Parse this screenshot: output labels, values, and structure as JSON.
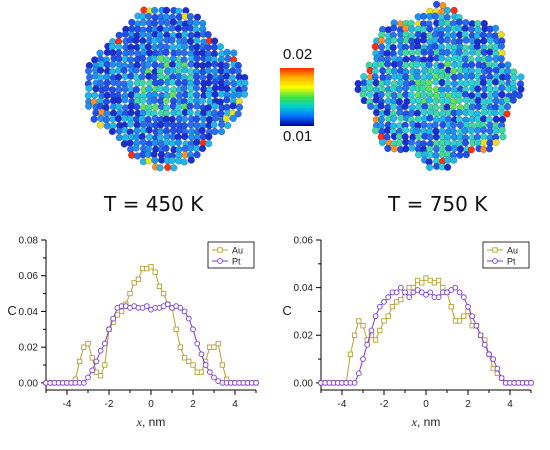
{
  "colors": {
    "au": "#b8a030",
    "pt": "#7a3ad8",
    "axis": "#000000"
  },
  "colorbar": {
    "max_label": "0.02",
    "min_label": "0.01",
    "stops": [
      "#ff2a00",
      "#ffb000",
      "#ffff00",
      "#40e040",
      "#00d0d0",
      "#0070ff",
      "#0000a0"
    ]
  },
  "snapshots": [
    {
      "label": "T = 450 K"
    },
    {
      "label": "T = 750 K"
    }
  ],
  "chart_data": [
    {
      "type": "line",
      "temperature": "T = 450 K",
      "xlabel_var": "x",
      "xlabel_unit": ", nm",
      "ylabel": "C",
      "xlim": [
        -5,
        5
      ],
      "ylim": [
        -0.004,
        0.08
      ],
      "xticks": [
        -4,
        -2,
        0,
        2,
        4
      ],
      "yticks": [
        0.0,
        0.02,
        0.04,
        0.06,
        0.08
      ],
      "ytick_labels": [
        "0.00",
        "0.02",
        "0.04",
        "0.06",
        "0.08"
      ],
      "legend_position": "top-right",
      "series": [
        {
          "name": "Au",
          "marker": "square",
          "x": [
            -5.0,
            -4.8,
            -4.6,
            -4.4,
            -4.2,
            -4.0,
            -3.8,
            -3.6,
            -3.4,
            -3.2,
            -3.0,
            -2.8,
            -2.6,
            -2.4,
            -2.2,
            -2.0,
            -1.8,
            -1.6,
            -1.4,
            -1.2,
            -1.0,
            -0.8,
            -0.6,
            -0.4,
            -0.2,
            0.0,
            0.2,
            0.4,
            0.6,
            0.8,
            1.0,
            1.2,
            1.4,
            1.6,
            1.8,
            2.0,
            2.2,
            2.4,
            2.6,
            2.8,
            3.0,
            3.2,
            3.4,
            3.6,
            3.8,
            4.0,
            4.2,
            4.4,
            4.6,
            4.8,
            5.0
          ],
          "y": [
            0,
            0,
            0,
            0,
            0,
            0,
            0,
            0.002,
            0.012,
            0.02,
            0.022,
            0.014,
            0.006,
            0.004,
            0.01,
            0.03,
            0.034,
            0.038,
            0.04,
            0.044,
            0.05,
            0.056,
            0.058,
            0.064,
            0.064,
            0.065,
            0.062,
            0.054,
            0.05,
            0.044,
            0.042,
            0.03,
            0.02,
            0.014,
            0.012,
            0.01,
            0.006,
            0.006,
            0.012,
            0.02,
            0.02,
            0.022,
            0.01,
            0.002,
            0,
            0,
            0,
            0,
            0,
            0,
            0
          ]
        },
        {
          "name": "Pt",
          "marker": "circle",
          "x": [
            -5.0,
            -4.8,
            -4.6,
            -4.4,
            -4.2,
            -4.0,
            -3.8,
            -3.6,
            -3.4,
            -3.2,
            -3.0,
            -2.8,
            -2.6,
            -2.4,
            -2.2,
            -2.0,
            -1.8,
            -1.6,
            -1.4,
            -1.2,
            -1.0,
            -0.8,
            -0.6,
            -0.4,
            -0.2,
            0.0,
            0.2,
            0.4,
            0.6,
            0.8,
            1.0,
            1.2,
            1.4,
            1.6,
            1.8,
            2.0,
            2.2,
            2.4,
            2.6,
            2.8,
            3.0,
            3.2,
            3.4,
            3.6,
            3.8,
            4.0,
            4.2,
            4.4,
            4.6,
            4.8,
            5.0
          ],
          "y": [
            0,
            0,
            0,
            0,
            0,
            0,
            0,
            0,
            0,
            0,
            0.003,
            0.007,
            0.012,
            0.018,
            0.022,
            0.03,
            0.036,
            0.042,
            0.043,
            0.043,
            0.042,
            0.043,
            0.042,
            0.042,
            0.043,
            0.041,
            0.042,
            0.042,
            0.043,
            0.044,
            0.042,
            0.043,
            0.042,
            0.04,
            0.036,
            0.03,
            0.022,
            0.016,
            0.01,
            0.006,
            0.003,
            0.001,
            0,
            0,
            0,
            0,
            0,
            0,
            0,
            0,
            0
          ]
        }
      ]
    },
    {
      "type": "line",
      "temperature": "T = 750 K",
      "xlabel_var": "x",
      "xlabel_unit": ", nm",
      "ylabel": "C",
      "xlim": [
        -5,
        5
      ],
      "ylim": [
        -0.003,
        0.06
      ],
      "xticks": [
        -4,
        -2,
        0,
        2,
        4
      ],
      "yticks": [
        0.0,
        0.02,
        0.04,
        0.06
      ],
      "ytick_labels": [
        "0.00",
        "0.02",
        "0.04",
        "0.06"
      ],
      "legend_position": "top-right",
      "series": [
        {
          "name": "Au",
          "marker": "square",
          "x": [
            -5.0,
            -4.8,
            -4.6,
            -4.4,
            -4.2,
            -4.0,
            -3.8,
            -3.6,
            -3.4,
            -3.2,
            -3.0,
            -2.8,
            -2.6,
            -2.4,
            -2.2,
            -2.0,
            -1.8,
            -1.6,
            -1.4,
            -1.2,
            -1.0,
            -0.8,
            -0.6,
            -0.4,
            -0.2,
            0.0,
            0.2,
            0.4,
            0.6,
            0.8,
            1.0,
            1.2,
            1.4,
            1.6,
            1.8,
            2.0,
            2.2,
            2.4,
            2.6,
            2.8,
            3.0,
            3.2,
            3.4,
            3.6,
            3.8,
            4.0,
            4.2,
            4.4,
            4.6,
            4.8,
            5.0
          ],
          "y": [
            0,
            0,
            0,
            0,
            0,
            0,
            0,
            0.012,
            0.02,
            0.026,
            0.024,
            0.018,
            0.02,
            0.018,
            0.022,
            0.026,
            0.028,
            0.032,
            0.034,
            0.035,
            0.038,
            0.04,
            0.04,
            0.043,
            0.042,
            0.044,
            0.043,
            0.042,
            0.043,
            0.04,
            0.038,
            0.032,
            0.026,
            0.026,
            0.028,
            0.03,
            0.024,
            0.024,
            0.02,
            0.018,
            0.012,
            0.006,
            0.004,
            0.002,
            0,
            0,
            0,
            0,
            0,
            0,
            0
          ]
        },
        {
          "name": "Pt",
          "marker": "circle",
          "x": [
            -5.0,
            -4.8,
            -4.6,
            -4.4,
            -4.2,
            -4.0,
            -3.8,
            -3.6,
            -3.4,
            -3.2,
            -3.0,
            -2.8,
            -2.6,
            -2.4,
            -2.2,
            -2.0,
            -1.8,
            -1.6,
            -1.4,
            -1.2,
            -1.0,
            -0.8,
            -0.6,
            -0.4,
            -0.2,
            0.0,
            0.2,
            0.4,
            0.6,
            0.8,
            1.0,
            1.2,
            1.4,
            1.6,
            1.8,
            2.0,
            2.2,
            2.4,
            2.6,
            2.8,
            3.0,
            3.2,
            3.4,
            3.6,
            3.8,
            4.0,
            4.2,
            4.4,
            4.6,
            4.8,
            5.0
          ],
          "y": [
            0,
            0,
            0,
            0,
            0,
            0,
            0,
            0,
            0,
            0.004,
            0.01,
            0.016,
            0.022,
            0.028,
            0.032,
            0.034,
            0.036,
            0.038,
            0.038,
            0.04,
            0.038,
            0.036,
            0.038,
            0.039,
            0.038,
            0.037,
            0.038,
            0.036,
            0.036,
            0.038,
            0.038,
            0.039,
            0.04,
            0.038,
            0.036,
            0.032,
            0.028,
            0.024,
            0.02,
            0.016,
            0.012,
            0.01,
            0.006,
            0.002,
            0,
            0,
            0,
            0,
            0,
            0,
            0
          ]
        }
      ]
    }
  ]
}
